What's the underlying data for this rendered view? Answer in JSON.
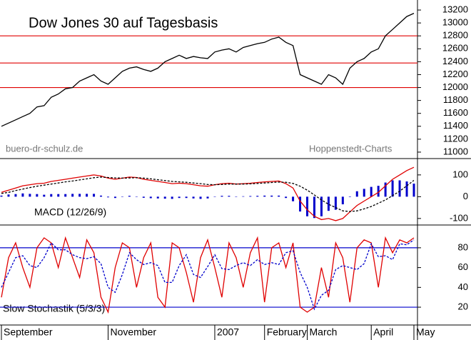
{
  "chart_data": [
    {
      "type": "line",
      "title": "Dow Jones 30 auf Tagesbasis",
      "annotations": [
        "buero-dr-schulz.de",
        "Hoppenstedt-Charts"
      ],
      "ylim": [
        10900,
        13300
      ],
      "yticks": [
        11000,
        11200,
        11400,
        11600,
        11800,
        12000,
        12200,
        12400,
        12600,
        12800,
        13000,
        13200
      ],
      "levels": [
        12000,
        12380,
        12800
      ],
      "level_color": "#e00000",
      "series": [
        {
          "color": "#000000",
          "values": [
            11400,
            11450,
            11500,
            11550,
            11600,
            11700,
            11720,
            11850,
            11900,
            11980,
            12000,
            12100,
            12150,
            12200,
            12100,
            12050,
            12150,
            12250,
            12300,
            12320,
            12280,
            12250,
            12300,
            12400,
            12450,
            12500,
            12450,
            12480,
            12460,
            12450,
            12550,
            12580,
            12600,
            12550,
            12620,
            12650,
            12680,
            12700,
            12750,
            12780,
            12700,
            12650,
            12200,
            12150,
            12100,
            12050,
            12200,
            12150,
            12050,
            12300,
            12400,
            12450,
            12550,
            12600,
            12800,
            12900,
            13000,
            13100,
            13150
          ]
        }
      ]
    },
    {
      "type": "line",
      "label": "MACD (12/26/9)",
      "ylim": [
        -130,
        175
      ],
      "yticks": [
        -100,
        0,
        100
      ],
      "series": [
        {
          "color": "#e00000",
          "values": [
            20,
            30,
            40,
            50,
            55,
            60,
            62,
            70,
            75,
            80,
            85,
            90,
            95,
            100,
            95,
            85,
            80,
            85,
            90,
            88,
            80,
            75,
            70,
            65,
            60,
            62,
            60,
            55,
            50,
            48,
            55,
            60,
            62,
            58,
            60,
            62,
            65,
            68,
            70,
            72,
            60,
            40,
            -20,
            -60,
            -90,
            -105,
            -100,
            -110,
            -100,
            -70,
            -40,
            -20,
            0,
            20,
            50,
            80,
            100,
            120,
            135
          ]
        },
        {
          "color": "#000000",
          "dashed": true,
          "values": [
            15,
            20,
            28,
            35,
            42,
            48,
            53,
            58,
            63,
            68,
            72,
            77,
            82,
            87,
            90,
            88,
            86,
            85,
            86,
            87,
            85,
            82,
            78,
            74,
            70,
            68,
            66,
            63,
            60,
            56,
            55,
            56,
            58,
            58,
            58,
            59,
            61,
            63,
            65,
            67,
            66,
            61,
            48,
            30,
            8,
            -15,
            -35,
            -50,
            -65,
            -68,
            -65,
            -56,
            -45,
            -30,
            -15,
            5,
            25,
            50,
            75
          ]
        }
      ],
      "histogram": {
        "color": "#0000cc",
        "values": [
          5,
          10,
          12,
          15,
          13,
          12,
          9,
          12,
          12,
          12,
          13,
          13,
          13,
          13,
          5,
          -3,
          -6,
          0,
          4,
          1,
          -5,
          -7,
          -8,
          -9,
          -10,
          -6,
          -6,
          -8,
          -10,
          -8,
          0,
          4,
          4,
          0,
          2,
          3,
          4,
          5,
          5,
          5,
          -6,
          -21,
          -68,
          -90,
          -98,
          -90,
          -65,
          -60,
          -35,
          -2,
          25,
          36,
          45,
          50,
          65,
          75,
          75,
          70,
          60
        ]
      }
    },
    {
      "type": "line",
      "label": "Slow Stochastik (5/3/3)",
      "ylim": [
        2,
        103
      ],
      "yticks": [
        20,
        40,
        60,
        80
      ],
      "levels": [
        20,
        80
      ],
      "level_color": "#0000cc",
      "categories": [
        "September",
        null,
        null,
        null,
        null,
        null,
        null,
        null,
        null,
        null,
        null,
        null,
        null,
        null,
        null,
        "November",
        null,
        null,
        null,
        null,
        null,
        null,
        null,
        null,
        null,
        null,
        null,
        null,
        null,
        null,
        "2007",
        null,
        null,
        null,
        null,
        null,
        null,
        "February",
        null,
        null,
        null,
        null,
        null,
        "March",
        null,
        null,
        null,
        null,
        null,
        null,
        null,
        null,
        "April",
        null,
        null,
        null,
        null,
        null,
        "May"
      ],
      "series": [
        {
          "color": "#e00000",
          "values": [
            30,
            70,
            85,
            60,
            40,
            80,
            90,
            85,
            60,
            90,
            70,
            50,
            88,
            75,
            30,
            15,
            60,
            85,
            80,
            40,
            70,
            85,
            30,
            20,
            85,
            80,
            55,
            25,
            70,
            88,
            60,
            30,
            85,
            70,
            40,
            75,
            90,
            25,
            80,
            85,
            60,
            85,
            20,
            15,
            20,
            60,
            30,
            85,
            70,
            25,
            80,
            88,
            85,
            40,
            90,
            75,
            88,
            85,
            90
          ]
        },
        {
          "color": "#0000cc",
          "dashed": true,
          "values": [
            40,
            55,
            70,
            72,
            62,
            60,
            70,
            85,
            78,
            78,
            73,
            70,
            69,
            71,
            64,
            40,
            35,
            53,
            75,
            68,
            63,
            65,
            62,
            45,
            45,
            62,
            73,
            53,
            50,
            61,
            73,
            59,
            58,
            62,
            65,
            62,
            68,
            63,
            65,
            63,
            75,
            77,
            55,
            40,
            18,
            32,
            37,
            58,
            62,
            60,
            58,
            64,
            84,
            71,
            72,
            68,
            84,
            83,
            88
          ]
        }
      ]
    }
  ]
}
